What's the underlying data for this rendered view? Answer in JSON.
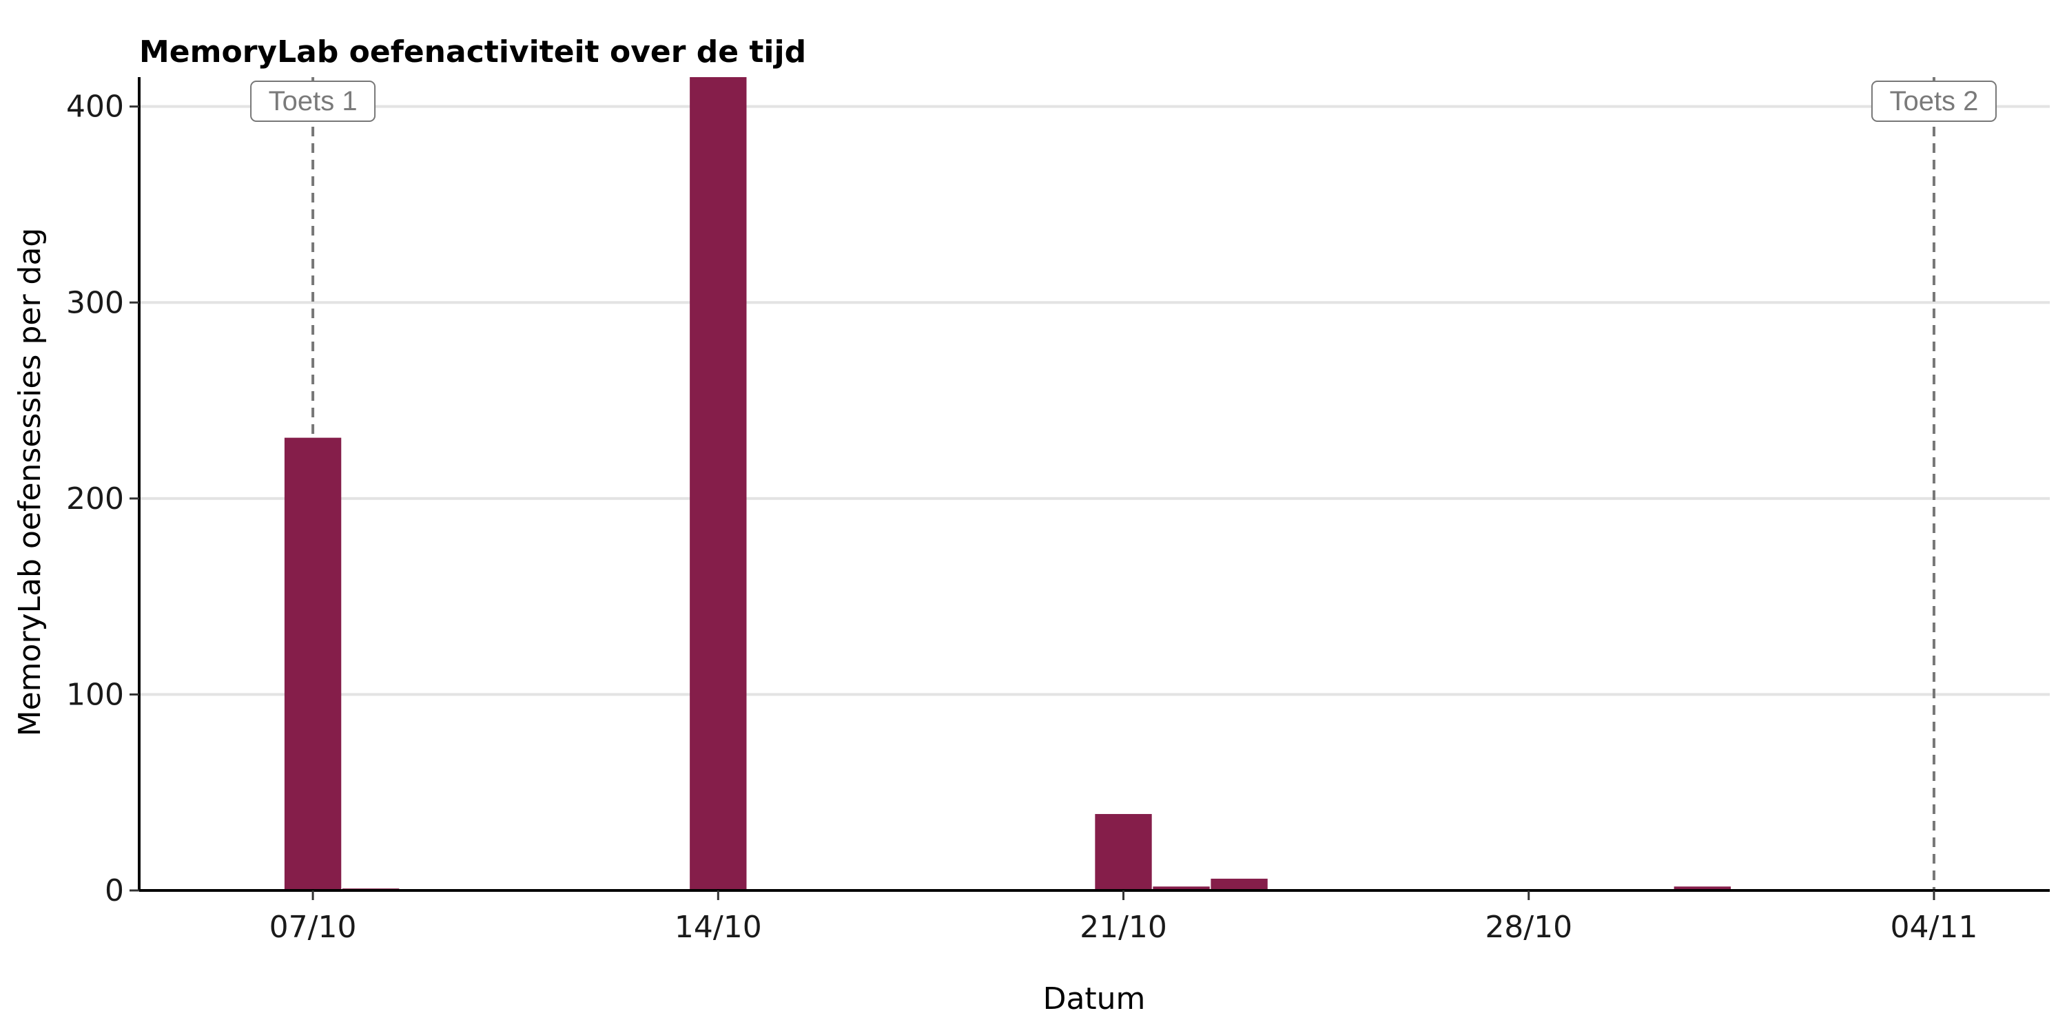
{
  "chart_data": {
    "type": "bar",
    "title": "MemoryLab oefenactiviteit over de tijd",
    "xlabel": "Datum",
    "ylabel": "MemoryLab oefensessies per dag",
    "x_axis": {
      "type": "date",
      "ticks": [
        {
          "date": "2024-10-07",
          "label": "07/10"
        },
        {
          "date": "2024-10-14",
          "label": "14/10"
        },
        {
          "date": "2024-10-21",
          "label": "21/10"
        },
        {
          "date": "2024-10-28",
          "label": "28/10"
        },
        {
          "date": "2024-11-04",
          "label": "04/11"
        }
      ],
      "range": [
        "2024-10-04",
        "2024-11-06"
      ]
    },
    "y_axis": {
      "ylim": [
        0,
        415
      ],
      "ticks": [
        0,
        100,
        200,
        300,
        400
      ]
    },
    "grid": "horizontal major",
    "bar_color": "#851e4a",
    "series": [
      {
        "points": [
          {
            "date": "2024-10-07",
            "value": 231
          },
          {
            "date": "2024-10-08",
            "value": 1
          },
          {
            "date": "2024-10-14",
            "value": 415
          },
          {
            "date": "2024-10-21",
            "value": 39
          },
          {
            "date": "2024-10-22",
            "value": 2
          },
          {
            "date": "2024-10-23",
            "value": 6
          },
          {
            "date": "2024-10-31",
            "value": 2
          }
        ]
      }
    ],
    "annotations": [
      {
        "date": "2024-10-07",
        "label": "Toets 1",
        "style": "dashed vertical line"
      },
      {
        "date": "2024-11-04",
        "label": "Toets 2",
        "style": "dashed vertical line"
      }
    ]
  }
}
